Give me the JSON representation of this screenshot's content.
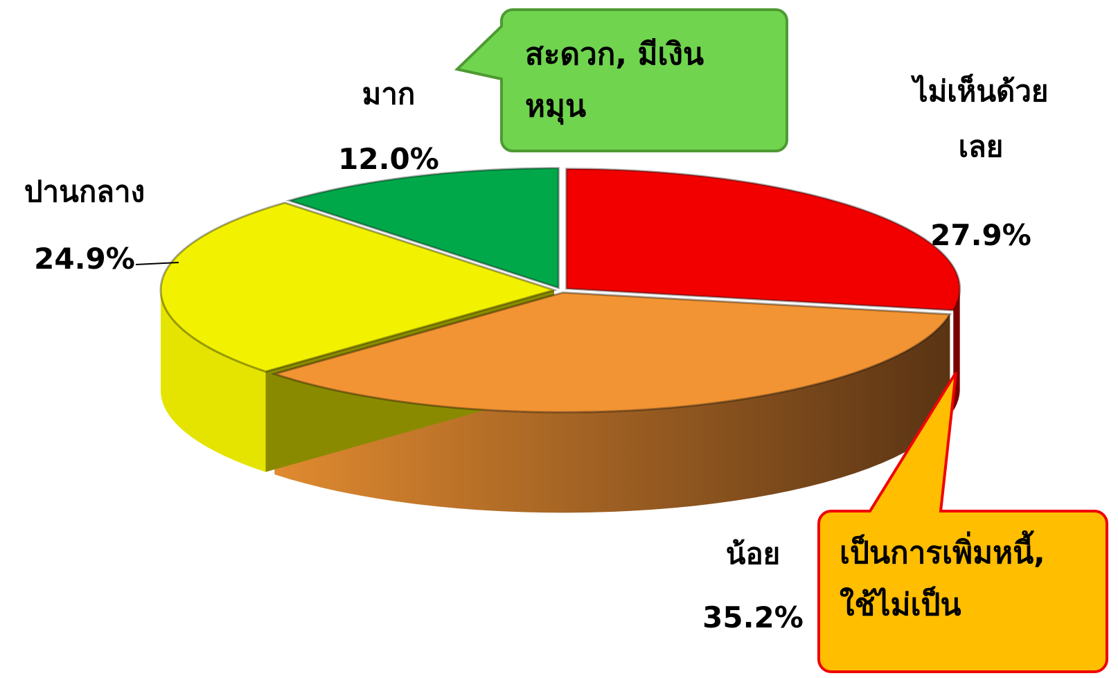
{
  "chart_data": {
    "type": "pie3d",
    "categories": [
      "ไม่เห็นด้วย\nเลย",
      "น้อย",
      "ปานกลาง",
      "มาก"
    ],
    "values": [
      27.9,
      35.2,
      24.9,
      12.0
    ],
    "value_labels": [
      "27.9%",
      "35.2%",
      "24.9%",
      "12.0%"
    ],
    "colors": [
      "#f20000",
      "#f29433",
      "#f2f200",
      "#00a84a"
    ],
    "annotations": [
      "สะดวก, มีเงิน\nหมุน",
      "เป็นการเพิ่มหนี้,\nใช้ไม่เป็น"
    ]
  }
}
